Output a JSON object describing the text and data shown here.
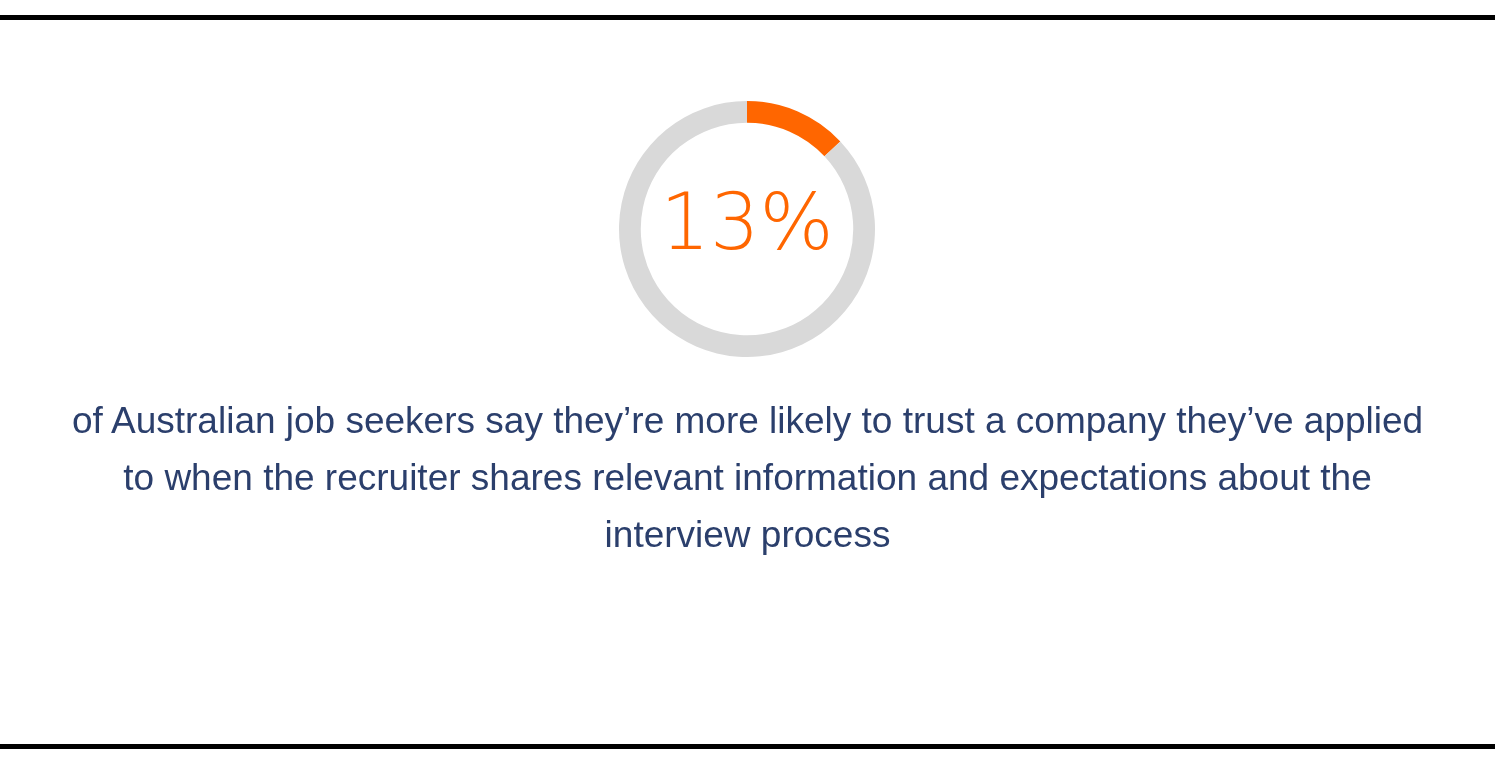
{
  "chart_data": {
    "type": "donut",
    "categories": [
      null,
      null
    ],
    "values": [
      13,
      87
    ],
    "colors": [
      "#ff6600",
      "#d9d9d9"
    ],
    "value_labels": [
      "13%",
      null
    ],
    "annotations": [
      "of Australian job seekers say they’re more likely to trust a company they’ve applied to when the recruiter shares relevant information and expectations about the interview process"
    ],
    "legend": false
  }
}
